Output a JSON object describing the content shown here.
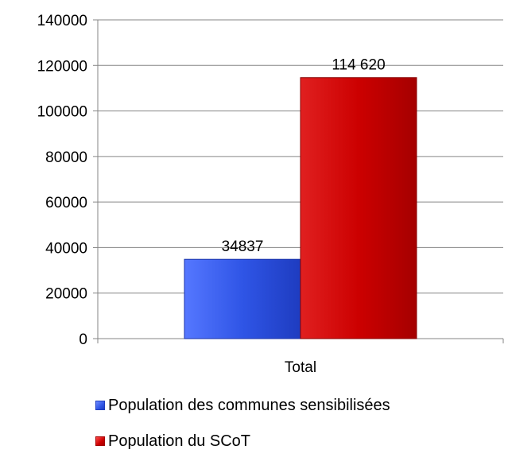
{
  "chart_data": {
    "type": "bar",
    "categories": [
      "Total"
    ],
    "series": [
      {
        "name": "Population des communes sensibilisées",
        "values": [
          34837
        ],
        "label": "34837",
        "color": "#2f55e6"
      },
      {
        "name": "Population du SCoT",
        "values": [
          114620
        ],
        "label": "114 620",
        "color": "#cc0000"
      }
    ],
    "ylim": [
      0,
      140000
    ],
    "yticks": [
      "0",
      "20000",
      "40000",
      "60000",
      "80000",
      "100000",
      "120000",
      "140000"
    ],
    "grid": true,
    "legend_position": "bottom"
  }
}
